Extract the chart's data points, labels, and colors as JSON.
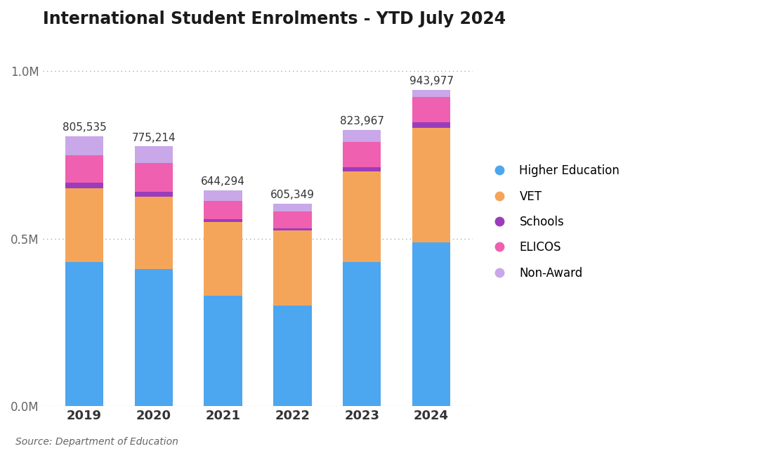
{
  "title": "International Student Enrolments - YTD July 2024",
  "years": [
    "2019",
    "2020",
    "2021",
    "2022",
    "2023",
    "2024"
  ],
  "totals": [
    805535,
    775214,
    644294,
    605349,
    823967,
    943977
  ],
  "segments": {
    "Higher Education": [
      430000,
      410000,
      330000,
      300000,
      430000,
      490000
    ],
    "VET": [
      220000,
      215000,
      220000,
      225000,
      270000,
      340000
    ],
    "Schools": [
      18000,
      15000,
      8000,
      6000,
      14000,
      18000
    ],
    "ELICOS": [
      80000,
      85000,
      55000,
      50000,
      75000,
      75000
    ],
    "Non-Award": [
      57535,
      50214,
      31294,
      24349,
      34967,
      20977
    ]
  },
  "colors": {
    "Higher Education": "#4DA6F0",
    "VET": "#F5A55A",
    "Schools": "#9B3DBB",
    "ELICOS": "#F060B0",
    "Non-Award": "#C8A8E8"
  },
  "segment_order": [
    "Higher Education",
    "VET",
    "Schools",
    "ELICOS",
    "Non-Award"
  ],
  "ylim": [
    0,
    1100000
  ],
  "yticks": [
    0,
    500000,
    1000000
  ],
  "ytick_labels": [
    "0.0M",
    "0.5M",
    "1.0M"
  ],
  "source": "Source: Department of Education",
  "background_color": "#FFFFFF",
  "bar_width": 0.55
}
